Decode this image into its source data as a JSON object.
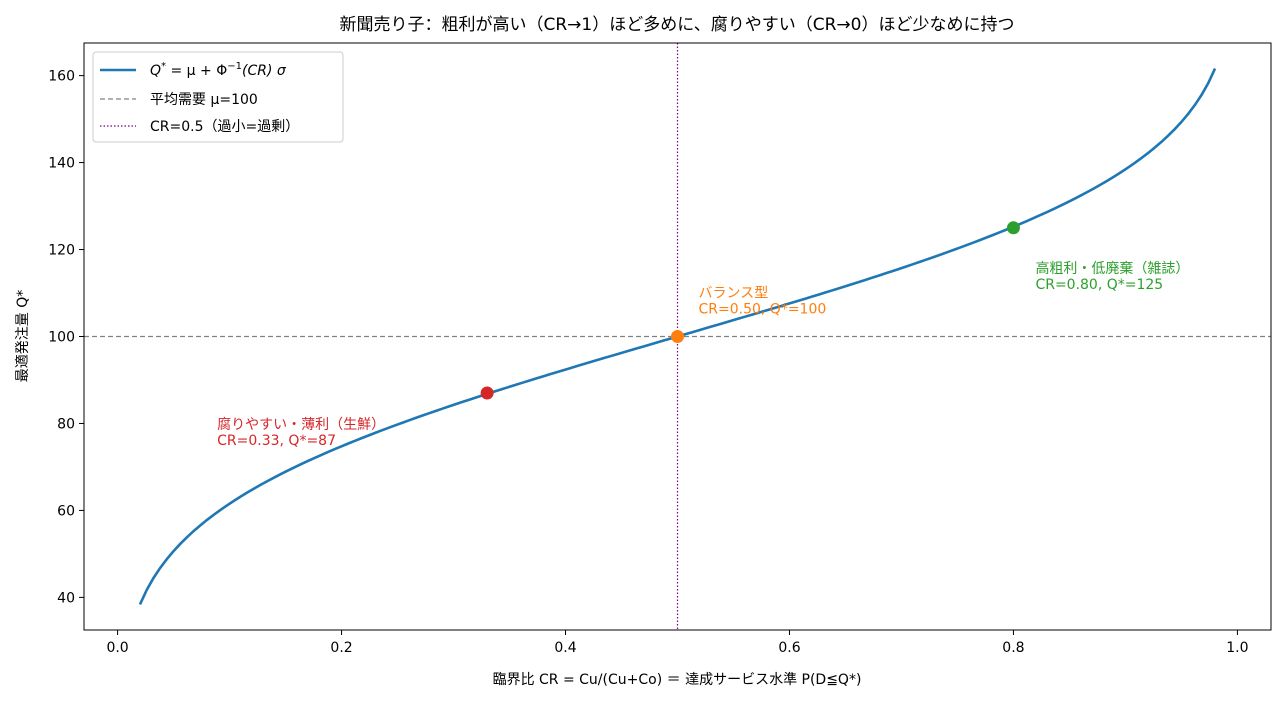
{
  "chart_data": {
    "type": "line",
    "title": "新聞売り子：粗利が高い（CR→1）ほど多めに、腐りやすい（CR→0）ほど少なめに持つ",
    "xlabel": "臨界比 CR = Cu/(Cu+Co) ＝ 達成サービス水準 P(D≦Q*)",
    "ylabel": "最適発注量 Q*",
    "xlim": [
      -0.03,
      1.03
    ],
    "ylim": [
      32.5,
      167.5
    ],
    "xticks": [
      0.0,
      0.2,
      0.4,
      0.6,
      0.8,
      1.0
    ],
    "xtick_labels": [
      "0.0",
      "0.2",
      "0.4",
      "0.6",
      "0.8",
      "1.0"
    ],
    "yticks": [
      40,
      60,
      80,
      100,
      120,
      140,
      160
    ],
    "ytick_labels": [
      "40",
      "60",
      "80",
      "100",
      "120",
      "140",
      "160"
    ],
    "grid": false,
    "legend_position": "top-left",
    "colors": {
      "curve": "#1f77b4",
      "mean_line": "#808080",
      "cr_line": "#800080",
      "perishable": "#d62728",
      "balanced": "#ff7f0e",
      "high_margin": "#2ca02c"
    },
    "curve": {
      "name": "Q* = μ + Φ⁻¹(CR) σ",
      "mu": 100,
      "sigma": 30,
      "x_range": [
        0.02,
        0.98
      ],
      "samples": 160
    },
    "reference_lines": [
      {
        "orientation": "horizontal",
        "value": 100,
        "style": "dashed",
        "label": "平均需要 μ=100"
      },
      {
        "orientation": "vertical",
        "value": 0.5,
        "style": "dotted",
        "label": "CR=0.5（過小=過剰）"
      }
    ],
    "points": [
      {
        "x": 0.33,
        "y": 87,
        "color": "#d62728",
        "title": "腐りやすい・薄利（生鮮）",
        "detail": "CR=0.33, Q*=87"
      },
      {
        "x": 0.5,
        "y": 100,
        "color": "#ff7f0e",
        "title": "バランス型",
        "detail": "CR=0.50, Q*=100"
      },
      {
        "x": 0.8,
        "y": 125,
        "color": "#2ca02c",
        "title": "高粗利・低廃棄（雑誌）",
        "detail": "CR=0.80, Q*=125"
      }
    ],
    "legend": {
      "entries": [
        {
          "key": "curve",
          "parts": {
            "q": "Q",
            "star": "*",
            "eq": " = μ + Φ",
            "exp": "−1",
            "tail": "(CR) σ"
          }
        },
        {
          "key": "mean",
          "label": "平均需要 μ=100"
        },
        {
          "key": "cr",
          "label": "CR=0.5（過小=過剰）"
        }
      ]
    }
  }
}
